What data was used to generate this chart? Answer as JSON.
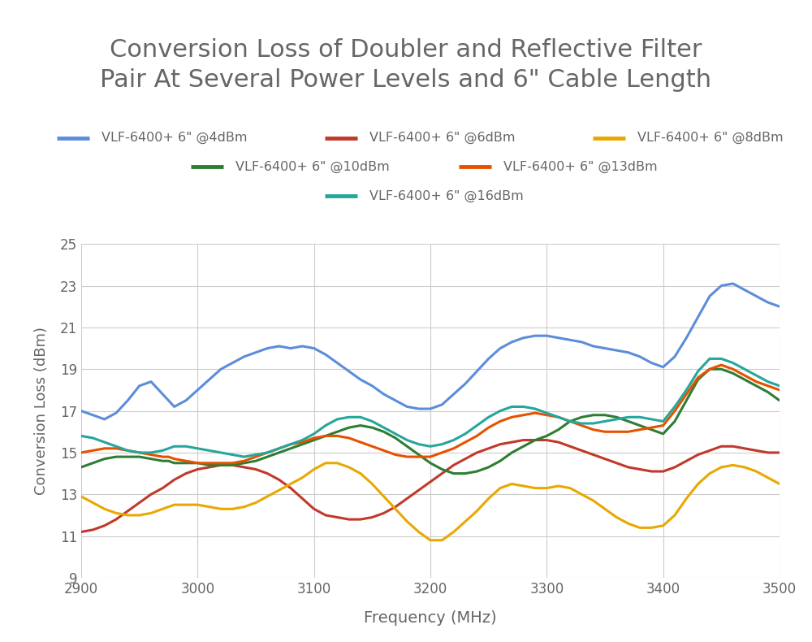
{
  "title": "Conversion Loss of Doubler and Reflective Filter\nPair At Several Power Levels and 6\" Cable Length",
  "xlabel": "Frequency (MHz)",
  "ylabel": "Conversion Loss (dBm)",
  "xlim": [
    2900,
    3500
  ],
  "ylim": [
    9,
    25
  ],
  "yticks": [
    9,
    11,
    13,
    15,
    17,
    19,
    21,
    23,
    25
  ],
  "xticks": [
    2900,
    3000,
    3100,
    3200,
    3300,
    3400,
    3500
  ],
  "background_color": "#ffffff",
  "grid_color": "#cccccc",
  "title_color": "#666666",
  "label_color": "#666666",
  "tick_color": "#666666",
  "title_fontsize": 22,
  "label_fontsize": 14,
  "tick_fontsize": 12,
  "legend_fontsize": 11.5,
  "series": [
    {
      "label": "VLF-6400+ 6\" @4dBm",
      "color": "#5B8DD9",
      "linewidth": 2.2,
      "freq": [
        2900,
        2910,
        2920,
        2930,
        2940,
        2950,
        2960,
        2970,
        2975,
        2980,
        2990,
        3000,
        3010,
        3020,
        3030,
        3040,
        3050,
        3060,
        3070,
        3080,
        3090,
        3100,
        3110,
        3120,
        3130,
        3140,
        3150,
        3160,
        3170,
        3180,
        3190,
        3200,
        3210,
        3220,
        3230,
        3240,
        3250,
        3260,
        3270,
        3280,
        3290,
        3300,
        3310,
        3320,
        3330,
        3340,
        3350,
        3360,
        3370,
        3380,
        3390,
        3400,
        3410,
        3420,
        3430,
        3440,
        3450,
        3460,
        3470,
        3480,
        3490,
        3500
      ],
      "values": [
        17.0,
        16.8,
        16.6,
        16.9,
        17.5,
        18.2,
        18.4,
        17.8,
        17.5,
        17.2,
        17.5,
        18.0,
        18.5,
        19.0,
        19.3,
        19.6,
        19.8,
        20.0,
        20.1,
        20.0,
        20.1,
        20.0,
        19.7,
        19.3,
        18.9,
        18.5,
        18.2,
        17.8,
        17.5,
        17.2,
        17.1,
        17.1,
        17.3,
        17.8,
        18.3,
        18.9,
        19.5,
        20.0,
        20.3,
        20.5,
        20.6,
        20.6,
        20.5,
        20.4,
        20.3,
        20.1,
        20.0,
        19.9,
        19.8,
        19.6,
        19.3,
        19.1,
        19.6,
        20.5,
        21.5,
        22.5,
        23.0,
        23.1,
        22.8,
        22.5,
        22.2,
        22.0
      ]
    },
    {
      "label": "VLF-6400+ 6\" @6dBm",
      "color": "#C0392B",
      "linewidth": 2.2,
      "freq": [
        2900,
        2910,
        2920,
        2930,
        2940,
        2950,
        2960,
        2970,
        2975,
        2980,
        2990,
        3000,
        3010,
        3020,
        3030,
        3040,
        3050,
        3060,
        3070,
        3080,
        3090,
        3100,
        3110,
        3120,
        3130,
        3140,
        3150,
        3160,
        3170,
        3180,
        3190,
        3200,
        3210,
        3220,
        3230,
        3240,
        3250,
        3260,
        3270,
        3280,
        3290,
        3300,
        3310,
        3320,
        3330,
        3340,
        3350,
        3360,
        3370,
        3380,
        3390,
        3400,
        3410,
        3420,
        3430,
        3440,
        3450,
        3460,
        3470,
        3480,
        3490,
        3500
      ],
      "values": [
        11.2,
        11.3,
        11.5,
        11.8,
        12.2,
        12.6,
        13.0,
        13.3,
        13.5,
        13.7,
        14.0,
        14.2,
        14.3,
        14.4,
        14.4,
        14.3,
        14.2,
        14.0,
        13.7,
        13.3,
        12.8,
        12.3,
        12.0,
        11.9,
        11.8,
        11.8,
        11.9,
        12.1,
        12.4,
        12.8,
        13.2,
        13.6,
        14.0,
        14.4,
        14.7,
        15.0,
        15.2,
        15.4,
        15.5,
        15.6,
        15.6,
        15.6,
        15.5,
        15.3,
        15.1,
        14.9,
        14.7,
        14.5,
        14.3,
        14.2,
        14.1,
        14.1,
        14.3,
        14.6,
        14.9,
        15.1,
        15.3,
        15.3,
        15.2,
        15.1,
        15.0,
        15.0
      ]
    },
    {
      "label": "VLF-6400+ 6\" @8dBm",
      "color": "#E8A800",
      "linewidth": 2.2,
      "freq": [
        2900,
        2910,
        2920,
        2930,
        2940,
        2950,
        2960,
        2970,
        2975,
        2980,
        2990,
        3000,
        3010,
        3020,
        3030,
        3040,
        3050,
        3060,
        3070,
        3080,
        3090,
        3100,
        3110,
        3120,
        3130,
        3140,
        3150,
        3160,
        3170,
        3180,
        3190,
        3200,
        3210,
        3220,
        3230,
        3240,
        3250,
        3260,
        3270,
        3280,
        3290,
        3300,
        3310,
        3320,
        3330,
        3340,
        3350,
        3360,
        3370,
        3380,
        3390,
        3400,
        3410,
        3420,
        3430,
        3440,
        3450,
        3460,
        3470,
        3480,
        3490,
        3500
      ],
      "values": [
        12.9,
        12.6,
        12.3,
        12.1,
        12.0,
        12.0,
        12.1,
        12.3,
        12.4,
        12.5,
        12.5,
        12.5,
        12.4,
        12.3,
        12.3,
        12.4,
        12.6,
        12.9,
        13.2,
        13.5,
        13.8,
        14.2,
        14.5,
        14.5,
        14.3,
        14.0,
        13.5,
        12.9,
        12.3,
        11.7,
        11.2,
        10.8,
        10.8,
        11.2,
        11.7,
        12.2,
        12.8,
        13.3,
        13.5,
        13.4,
        13.3,
        13.3,
        13.4,
        13.3,
        13.0,
        12.7,
        12.3,
        11.9,
        11.6,
        11.4,
        11.4,
        11.5,
        12.0,
        12.8,
        13.5,
        14.0,
        14.3,
        14.4,
        14.3,
        14.1,
        13.8,
        13.5
      ]
    },
    {
      "label": "VLF-6400+ 6\" @10dBm",
      "color": "#2E7D32",
      "linewidth": 2.2,
      "freq": [
        2900,
        2910,
        2920,
        2930,
        2940,
        2950,
        2960,
        2970,
        2975,
        2980,
        2990,
        3000,
        3010,
        3020,
        3030,
        3040,
        3050,
        3060,
        3070,
        3080,
        3090,
        3100,
        3110,
        3120,
        3130,
        3140,
        3150,
        3160,
        3170,
        3180,
        3190,
        3200,
        3210,
        3220,
        3230,
        3240,
        3250,
        3260,
        3270,
        3280,
        3290,
        3300,
        3310,
        3320,
        3330,
        3340,
        3350,
        3360,
        3370,
        3380,
        3390,
        3400,
        3410,
        3420,
        3430,
        3440,
        3450,
        3460,
        3470,
        3480,
        3490,
        3500
      ],
      "values": [
        14.3,
        14.5,
        14.7,
        14.8,
        14.8,
        14.8,
        14.7,
        14.6,
        14.6,
        14.5,
        14.5,
        14.5,
        14.4,
        14.4,
        14.4,
        14.5,
        14.6,
        14.8,
        15.0,
        15.2,
        15.4,
        15.6,
        15.8,
        16.0,
        16.2,
        16.3,
        16.2,
        16.0,
        15.7,
        15.3,
        14.9,
        14.5,
        14.2,
        14.0,
        14.0,
        14.1,
        14.3,
        14.6,
        15.0,
        15.3,
        15.6,
        15.8,
        16.1,
        16.5,
        16.7,
        16.8,
        16.8,
        16.7,
        16.5,
        16.3,
        16.1,
        15.9,
        16.5,
        17.5,
        18.5,
        19.0,
        19.0,
        18.8,
        18.5,
        18.2,
        17.9,
        17.5
      ]
    },
    {
      "label": "VLF-6400+ 6\" @13dBm",
      "color": "#E65100",
      "linewidth": 2.2,
      "freq": [
        2900,
        2910,
        2920,
        2930,
        2940,
        2950,
        2960,
        2970,
        2975,
        2980,
        2990,
        3000,
        3010,
        3020,
        3030,
        3040,
        3050,
        3060,
        3070,
        3080,
        3090,
        3100,
        3110,
        3120,
        3130,
        3140,
        3150,
        3160,
        3170,
        3180,
        3190,
        3200,
        3210,
        3220,
        3230,
        3240,
        3250,
        3260,
        3270,
        3280,
        3290,
        3300,
        3310,
        3320,
        3330,
        3340,
        3350,
        3360,
        3370,
        3380,
        3390,
        3400,
        3410,
        3420,
        3430,
        3440,
        3450,
        3460,
        3470,
        3480,
        3490,
        3500
      ],
      "values": [
        15.0,
        15.1,
        15.2,
        15.2,
        15.1,
        15.0,
        14.9,
        14.8,
        14.8,
        14.7,
        14.6,
        14.5,
        14.5,
        14.5,
        14.5,
        14.6,
        14.8,
        15.0,
        15.2,
        15.4,
        15.5,
        15.7,
        15.8,
        15.8,
        15.7,
        15.5,
        15.3,
        15.1,
        14.9,
        14.8,
        14.8,
        14.8,
        15.0,
        15.2,
        15.5,
        15.8,
        16.2,
        16.5,
        16.7,
        16.8,
        16.9,
        16.8,
        16.7,
        16.5,
        16.3,
        16.1,
        16.0,
        16.0,
        16.0,
        16.1,
        16.2,
        16.3,
        17.0,
        17.8,
        18.6,
        19.0,
        19.2,
        19.0,
        18.7,
        18.4,
        18.2,
        18.0
      ]
    },
    {
      "label": "VLF-6400+ 6\" @16dBm",
      "color": "#26A69A",
      "linewidth": 2.2,
      "freq": [
        2900,
        2910,
        2920,
        2930,
        2940,
        2950,
        2960,
        2970,
        2975,
        2980,
        2990,
        3000,
        3010,
        3020,
        3030,
        3040,
        3050,
        3060,
        3070,
        3080,
        3090,
        3100,
        3110,
        3120,
        3130,
        3140,
        3150,
        3160,
        3170,
        3180,
        3190,
        3200,
        3210,
        3220,
        3230,
        3240,
        3250,
        3260,
        3270,
        3280,
        3290,
        3300,
        3310,
        3320,
        3330,
        3340,
        3350,
        3360,
        3370,
        3380,
        3390,
        3400,
        3410,
        3420,
        3430,
        3440,
        3450,
        3460,
        3470,
        3480,
        3490,
        3500
      ],
      "values": [
        15.8,
        15.7,
        15.5,
        15.3,
        15.1,
        15.0,
        15.0,
        15.1,
        15.2,
        15.3,
        15.3,
        15.2,
        15.1,
        15.0,
        14.9,
        14.8,
        14.9,
        15.0,
        15.2,
        15.4,
        15.6,
        15.9,
        16.3,
        16.6,
        16.7,
        16.7,
        16.5,
        16.2,
        15.9,
        15.6,
        15.4,
        15.3,
        15.4,
        15.6,
        15.9,
        16.3,
        16.7,
        17.0,
        17.2,
        17.2,
        17.1,
        16.9,
        16.7,
        16.5,
        16.4,
        16.4,
        16.5,
        16.6,
        16.7,
        16.7,
        16.6,
        16.5,
        17.2,
        18.0,
        18.9,
        19.5,
        19.5,
        19.3,
        19.0,
        18.7,
        18.4,
        18.2
      ]
    }
  ]
}
